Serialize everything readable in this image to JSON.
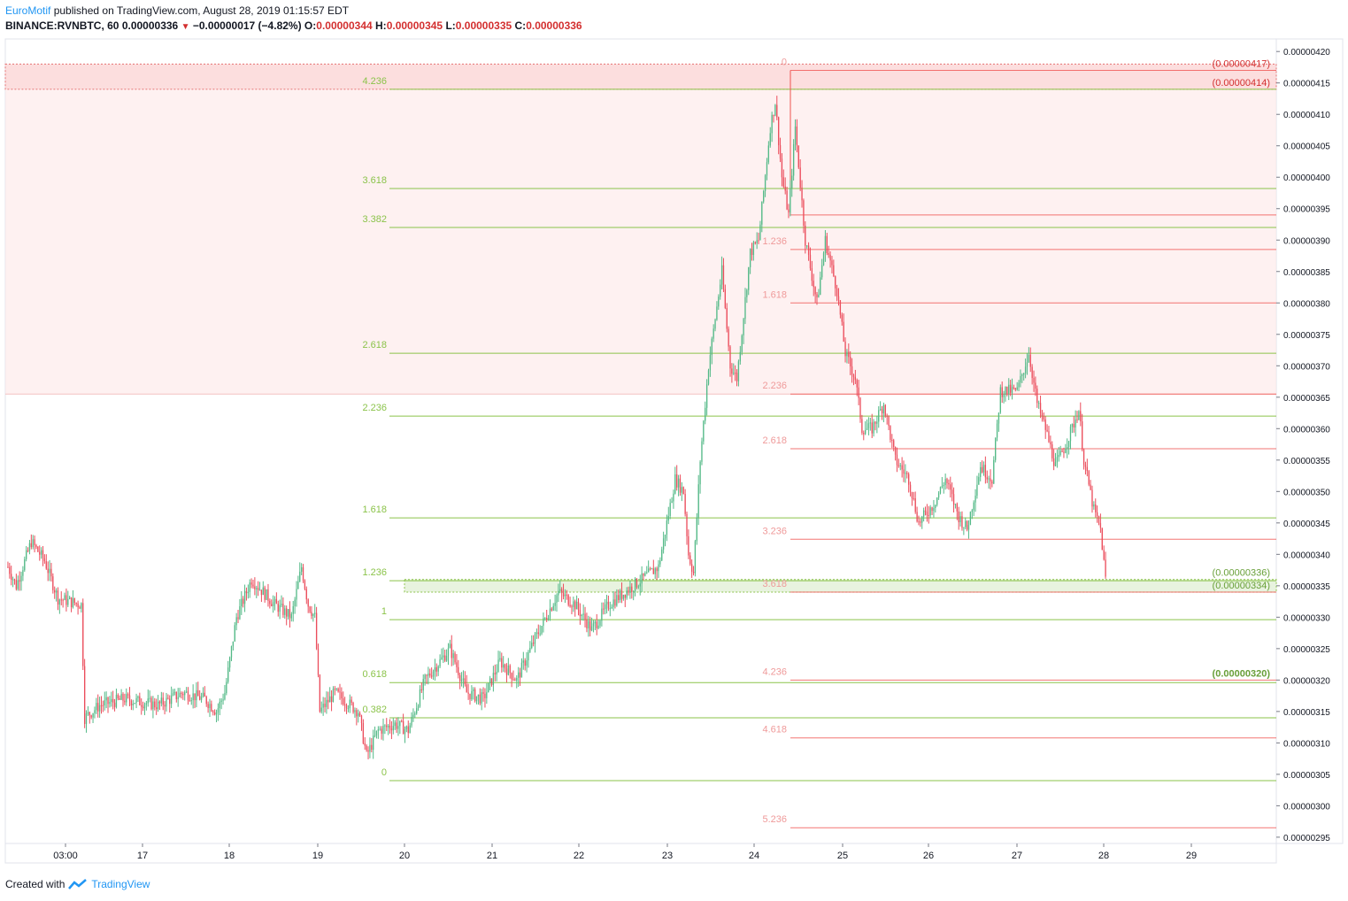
{
  "header": {
    "author": "EuroMotif",
    "published_text": " published on TradingView.com, August 28, 2019 01:15:57 EDT",
    "symbol": "BINANCE:RVNBTC, 60",
    "last_price": "0.00000336",
    "change": "−0.00000017 (−4.82%)",
    "o_label": "O:",
    "o_value": "0.00000344",
    "h_label": "H:",
    "h_value": "0.00000345",
    "l_label": "L:",
    "l_value": "0.00000335",
    "c_label": "C:",
    "c_value": "0.00000336"
  },
  "footer": {
    "created_with": "Created with",
    "brand": "TradingView"
  },
  "colors": {
    "up": "#53b987",
    "down": "#eb4d5c",
    "fib_green": "#8bc34a",
    "fib_red": "#ef5350",
    "resistance_zone": "#fde8e8",
    "support_zone": "#e8f3df",
    "price_label_red": "#d32f2f",
    "price_label_green": "#689f38"
  },
  "chart_data": {
    "type": "candlestick",
    "ylim": [
      2.94e-06,
      4.22e-06
    ],
    "y_ticks": [
      "0.00000420",
      "0.00000415",
      "0.00000410",
      "0.00000405",
      "0.00000400",
      "0.00000395",
      "0.00000390",
      "0.00000385",
      "0.00000380",
      "0.00000375",
      "0.00000370",
      "0.00000365",
      "0.00000360",
      "0.00000355",
      "0.00000350",
      "0.00000345",
      "0.00000340",
      "0.00000335",
      "0.00000330",
      "0.00000325",
      "0.00000320",
      "0.00000315",
      "0.00000310",
      "0.00000305",
      "0.00000300",
      "0.00000295"
    ],
    "x_ticks": [
      "03:00",
      "17",
      "18",
      "19",
      "20",
      "21",
      "22",
      "23",
      "24",
      "25",
      "26",
      "27",
      "28",
      "29"
    ],
    "price_labels": [
      {
        "text": "(0.00000417)",
        "value": 4.17e-06,
        "color": "red"
      },
      {
        "text": "(0.00000414)",
        "value": 4.14e-06,
        "color": "red"
      },
      {
        "text": "(0.00000336)",
        "value": 3.36e-06,
        "color": "green"
      },
      {
        "text": "(0.00000334)",
        "value": 3.34e-06,
        "color": "green"
      },
      {
        "text": "(0.00000320)",
        "value": 3.2e-06,
        "color": "green"
      }
    ],
    "fib_extension_up": [
      {
        "label": "4.236",
        "value": 4.14e-06
      },
      {
        "label": "3.618",
        "value": 3.982e-06
      },
      {
        "label": "3.382",
        "value": 3.92e-06
      },
      {
        "label": "2.618",
        "value": 3.72e-06
      },
      {
        "label": "2.236",
        "value": 3.62e-06
      },
      {
        "label": "1.618",
        "value": 3.458e-06
      },
      {
        "label": "1.236",
        "value": 3.358e-06
      },
      {
        "label": "1",
        "value": 3.296e-06
      },
      {
        "label": "0.618",
        "value": 3.196e-06
      },
      {
        "label": "0.382",
        "value": 3.14e-06
      },
      {
        "label": "0",
        "value": 3.04e-06
      }
    ],
    "fib_extension_down": [
      {
        "label": "0",
        "value": 4.17e-06
      },
      {
        "label": "",
        "value": 3.94e-06
      },
      {
        "label": "1.236",
        "value": 3.885e-06
      },
      {
        "label": "1.618",
        "value": 3.8e-06
      },
      {
        "label": "2.236",
        "value": 3.655e-06
      },
      {
        "label": "2.618",
        "value": 3.568e-06
      },
      {
        "label": "3.236",
        "value": 3.424e-06
      },
      {
        "label": "3.618",
        "value": 3.34e-06
      },
      {
        "label": "4.236",
        "value": 3.2e-06
      },
      {
        "label": "4.618",
        "value": 3.108e-06
      },
      {
        "label": "5.236",
        "value": 2.965e-06
      }
    ],
    "resistance_zone": [
      3.655e-06,
      4.18e-06
    ],
    "support_zone": [
      3.34e-06,
      3.36e-06
    ],
    "waypoints": [
      [
        0,
        3.38e-06
      ],
      [
        5,
        3.35e-06
      ],
      [
        14,
        3.42e-06
      ],
      [
        22,
        3.39e-06
      ],
      [
        30,
        3.33e-06
      ],
      [
        44,
        3.32e-06
      ],
      [
        46,
        3.14e-06
      ],
      [
        55,
        3.16e-06
      ],
      [
        70,
        3.17e-06
      ],
      [
        90,
        3.16e-06
      ],
      [
        105,
        3.18e-06
      ],
      [
        118,
        3.17e-06
      ],
      [
        125,
        3.15e-06
      ],
      [
        130,
        3.18e-06
      ],
      [
        137,
        3.3e-06
      ],
      [
        146,
        3.36e-06
      ],
      [
        160,
        3.32e-06
      ],
      [
        170,
        3.3e-06
      ],
      [
        176,
        3.38e-06
      ],
      [
        180,
        3.32e-06
      ],
      [
        184,
        3.3e-06
      ],
      [
        187,
        3.15e-06
      ],
      [
        196,
        3.18e-06
      ],
      [
        210,
        3.15e-06
      ],
      [
        215,
        3.08e-06
      ],
      [
        222,
        3.12e-06
      ],
      [
        232,
        3.13e-06
      ],
      [
        240,
        3.12e-06
      ],
      [
        250,
        3.2e-06
      ],
      [
        265,
        3.25e-06
      ],
      [
        275,
        3.18e-06
      ],
      [
        285,
        3.17e-06
      ],
      [
        295,
        3.23e-06
      ],
      [
        305,
        3.2e-06
      ],
      [
        315,
        3.26e-06
      ],
      [
        330,
        3.34e-06
      ],
      [
        340,
        3.32e-06
      ],
      [
        350,
        3.28e-06
      ],
      [
        360,
        3.32e-06
      ],
      [
        375,
        3.35e-06
      ],
      [
        390,
        3.38e-06
      ],
      [
        400,
        3.52e-06
      ],
      [
        405,
        3.5e-06
      ],
      [
        408,
        3.4e-06
      ],
      [
        411,
        3.37e-06
      ],
      [
        415,
        3.55e-06
      ],
      [
        420,
        3.7e-06
      ],
      [
        428,
        3.85e-06
      ],
      [
        433,
        3.7e-06
      ],
      [
        437,
        3.68e-06
      ],
      [
        445,
        3.88e-06
      ],
      [
        450,
        3.9e-06
      ],
      [
        457,
        4.08e-06
      ],
      [
        460,
        4.12e-06
      ],
      [
        464,
        4e-06
      ],
      [
        468,
        3.94e-06
      ],
      [
        472,
        4.08e-06
      ],
      [
        478,
        3.9e-06
      ],
      [
        485,
        3.8e-06
      ],
      [
        490,
        3.9e-06
      ],
      [
        497,
        3.82e-06
      ],
      [
        502,
        3.72e-06
      ],
      [
        508,
        3.68e-06
      ],
      [
        512,
        3.6e-06
      ],
      [
        518,
        3.6e-06
      ],
      [
        525,
        3.64e-06
      ],
      [
        532,
        3.55e-06
      ],
      [
        540,
        3.52e-06
      ],
      [
        546,
        3.45e-06
      ],
      [
        555,
        3.48e-06
      ],
      [
        562,
        3.52e-06
      ],
      [
        570,
        3.46e-06
      ],
      [
        575,
        3.44e-06
      ],
      [
        583,
        3.54e-06
      ],
      [
        590,
        3.52e-06
      ],
      [
        595,
        3.66e-06
      ],
      [
        605,
        3.66e-06
      ],
      [
        612,
        3.72e-06
      ],
      [
        617,
        3.64e-06
      ],
      [
        622,
        3.6e-06
      ],
      [
        628,
        3.54e-06
      ],
      [
        635,
        3.58e-06
      ],
      [
        642,
        3.63e-06
      ],
      [
        645,
        3.55e-06
      ],
      [
        651,
        3.47e-06
      ],
      [
        655,
        3.44e-06
      ],
      [
        658,
        3.36e-06
      ]
    ]
  }
}
